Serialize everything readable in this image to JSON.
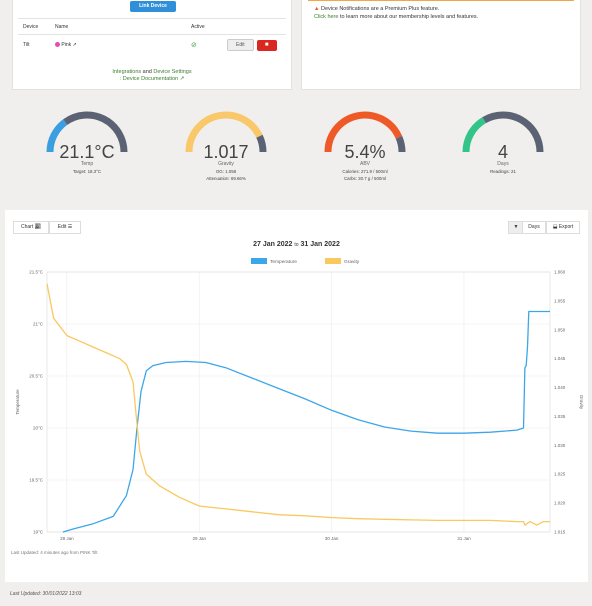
{
  "devices": {
    "link_button": "Link Device",
    "headers": [
      "Device",
      "Name",
      "Active"
    ],
    "row": {
      "device": "Tilt",
      "name": "Pink",
      "edit": "Edit",
      "delete_icon": "trash-icon"
    },
    "integrations_link": "Integrations",
    "integrations_and": " and ",
    "device_settings_link": "Device Settings",
    "device_doc_link": ": Device Documentation"
  },
  "notice": {
    "title": "Device Notifications are a Premium Plus feature.",
    "link": "Click here",
    "text": " to learn more about our membership levels and features."
  },
  "gauges": [
    {
      "value": "21.1°C",
      "label": "Temp",
      "fraction": 0.3,
      "color": "#3b9ee0",
      "sub": [
        "Target: 18.3°C"
      ]
    },
    {
      "value": "1.017",
      "label": "Gravity",
      "fraction": 0.86,
      "color": "#f9c86a",
      "sub": [
        "OG: 1.058",
        "Attenuation: 69.66%"
      ]
    },
    {
      "value": "5.4%",
      "label": "ABV",
      "fraction": 0.87,
      "color": "#ee5a27",
      "sub": [
        "Calories: 271.9 / 500ml",
        "Carbs: 30.7 g / 500ml"
      ]
    },
    {
      "value": "4",
      "label": "Days",
      "fraction": 0.33,
      "color": "#33c489",
      "sub": [
        "Readings: 21"
      ]
    }
  ],
  "tabs": {
    "chart": "Chart",
    "edit": "Edit",
    "days": "Days",
    "export": "Export"
  },
  "chart_data": {
    "type": "line",
    "date_from": "27 Jan 2022",
    "date_to_word": "to",
    "date_to": "31 Jan 2022",
    "legend_placement": "top-center",
    "x_ticks": [
      "28 Jan",
      "29 Jan",
      "30 Jan",
      "31 Jan"
    ],
    "x_range": [
      27.85,
      31.65
    ],
    "y_left": {
      "label": "Temperature",
      "range": [
        19.0,
        21.5
      ],
      "ticks": [
        "21.5°C",
        "21°C",
        "20.5°C",
        "20°C",
        "19.5°C",
        "19°C"
      ],
      "tick_values": [
        21.5,
        21,
        20.5,
        20,
        19.5,
        19
      ]
    },
    "y_right": {
      "label": "Gravity",
      "range": [
        1.015,
        1.06
      ],
      "ticks": [
        "1.060",
        "1.055",
        "1.050",
        "1.045",
        "1.040",
        "1.035",
        "1.030",
        "1.025",
        "1.020",
        "1.015"
      ],
      "tick_values": [
        1.06,
        1.055,
        1.05,
        1.045,
        1.04,
        1.035,
        1.03,
        1.025,
        1.02,
        1.015
      ]
    },
    "series": [
      {
        "name": "Temperature",
        "color": "#3ca6e8",
        "axis": "left",
        "x": [
          27.97,
          28.05,
          28.2,
          28.35,
          28.45,
          28.5,
          28.53,
          28.56,
          28.6,
          28.65,
          28.75,
          28.9,
          29.05,
          29.2,
          29.4,
          29.6,
          29.8,
          30.0,
          30.2,
          30.4,
          30.6,
          30.8,
          31.0,
          31.2,
          31.4,
          31.45,
          31.46,
          31.47,
          31.48,
          31.49,
          31.5,
          31.65
        ],
        "y": [
          19.0,
          19.03,
          19.08,
          19.15,
          19.35,
          19.6,
          20.0,
          20.35,
          20.55,
          20.6,
          20.63,
          20.64,
          20.63,
          20.58,
          20.48,
          20.38,
          20.28,
          20.17,
          20.08,
          20.01,
          19.97,
          19.95,
          19.95,
          19.96,
          19.98,
          20.0,
          20.58,
          20.6,
          20.78,
          21.12,
          21.12,
          21.12
        ]
      },
      {
        "name": "Gravity",
        "color": "#f9c85f",
        "axis": "right",
        "x": [
          27.85,
          27.9,
          28.0,
          28.1,
          28.2,
          28.3,
          28.4,
          28.45,
          28.5,
          28.52,
          28.55,
          28.6,
          28.7,
          28.85,
          29.0,
          29.2,
          29.4,
          29.6,
          29.8,
          30.0,
          30.2,
          30.4,
          30.6,
          30.8,
          31.0,
          31.2,
          31.4,
          31.45,
          31.46,
          31.5,
          31.55,
          31.6,
          31.65
        ],
        "y": [
          1.058,
          1.052,
          1.049,
          1.048,
          1.047,
          1.046,
          1.045,
          1.044,
          1.041,
          1.036,
          1.029,
          1.025,
          1.023,
          1.021,
          1.0195,
          1.019,
          1.0185,
          1.018,
          1.0178,
          1.0175,
          1.0173,
          1.0172,
          1.0171,
          1.017,
          1.017,
          1.017,
          1.0168,
          1.0168,
          1.0162,
          1.0168,
          1.0162,
          1.0168,
          1.0168
        ]
      }
    ]
  },
  "chart_footer": "Last Updated: 4 minutes ago from PINK Tilt",
  "page_footer": "Last Updated: 30/01/2022 13:03"
}
